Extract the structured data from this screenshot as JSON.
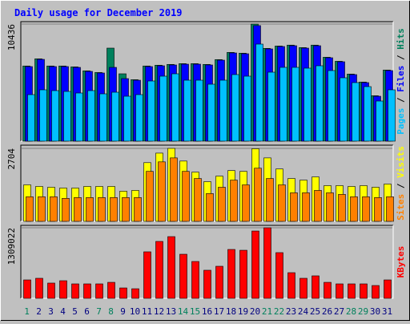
{
  "chart_data": {
    "type": "bar",
    "title": "Daily usage for December 2019",
    "categories": [
      "1",
      "2",
      "3",
      "4",
      "5",
      "6",
      "7",
      "8",
      "9",
      "10",
      "11",
      "12",
      "13",
      "14",
      "15",
      "16",
      "17",
      "18",
      "19",
      "20",
      "21",
      "22",
      "23",
      "24",
      "25",
      "26",
      "27",
      "28",
      "29",
      "30",
      "31"
    ],
    "category_colors": [
      "#00805c",
      "#000080",
      "#000080",
      "#000080",
      "#000080",
      "#000080",
      "#00805c",
      "#00805c",
      "#000080",
      "#000080",
      "#000080",
      "#000080",
      "#000080",
      "#00805c",
      "#00805c",
      "#000080",
      "#000080",
      "#000080",
      "#000080",
      "#000080",
      "#00805c",
      "#00805c",
      "#000080",
      "#000080",
      "#000080",
      "#000080",
      "#000080",
      "#00805c",
      "#00805c",
      "#000080",
      "#000080"
    ],
    "legend_separator": " / ",
    "panels": [
      {
        "ylim": [
          0,
          10436
        ],
        "yticks": [
          10436
        ],
        "series": [
          {
            "name": "Hits",
            "color": "#00805c",
            "values": [
              6700,
              7340,
              6700,
              6700,
              6620,
              6270,
              6120,
              8292,
              6004,
              5480,
              6700,
              6770,
              6840,
              6910,
              6910,
              6840,
              7270,
              7910,
              7840,
              10436,
              8270,
              8480,
              8560,
              8340,
              8560,
              7480,
              7120,
              5980,
              5270,
              4050,
              6340
            ]
          },
          {
            "name": "Files",
            "color": "#0000ff",
            "values": [
              6648,
              7291,
              6648,
              6648,
              6576,
              6219,
              6076,
              6576,
              5575,
              5432,
              6648,
              6719,
              6791,
              6862,
              6862,
              6791,
              7219,
              7863,
              7791,
              10300,
              8220,
              8435,
              8506,
              8292,
              8506,
              7434,
              7077,
              5933,
              5218,
              4003,
              6290
            ]
          },
          {
            "name": "Pages",
            "color": "#00c0ff",
            "values": [
              4146,
              4575,
              4503,
              4432,
              4289,
              4503,
              4217,
              4360,
              4003,
              4146,
              5361,
              5790,
              6004,
              5432,
              5432,
              5075,
              5432,
              5933,
              5790,
              8649,
              6147,
              6576,
              6576,
              6505,
              6719,
              6290,
              5647,
              5218,
              4861,
              3574,
              4575
            ]
          }
        ]
      },
      {
        "ylim": [
          0,
          2704
        ],
        "yticks": [
          2704
        ],
        "series": [
          {
            "name": "Visits",
            "color": "#ffff00",
            "values": [
              1352,
              1293,
              1264,
              1234,
              1234,
              1293,
              1293,
              1293,
              1117,
              1146,
              2175,
              2528,
              2704,
              2234,
              1822,
              1470,
              1675,
              1881,
              1852,
              2690,
              2351,
              1940,
              1587,
              1528,
              1646,
              1323,
              1323,
              1293,
              1323,
              1264,
              1381
            ]
          },
          {
            "name": "Sites",
            "color": "#ff8000",
            "values": [
              911,
              911,
              911,
              852,
              882,
              882,
              882,
              882,
              882,
              882,
              1852,
              2204,
              2351,
              1852,
              1587,
              1029,
              1264,
              1528,
              1352,
              1969,
              1587,
              1352,
              1058,
              1058,
              1146,
              1058,
              999,
              911,
              911,
              882,
              911
            ]
          }
        ]
      },
      {
        "ylim": [
          0,
          1309022
        ],
        "yticks": [
          1309022
        ],
        "series": [
          {
            "name": "KBytes",
            "color": "#ff0000",
            "values": [
              342000,
              372000,
              283000,
              327000,
              268000,
              268000,
              268000,
              297000,
              193000,
              178000,
              863000,
              1056000,
              1145000,
              818000,
              684000,
              521000,
              595000,
              907000,
              892000,
              1249000,
              1309022,
              848000,
              476000,
              372000,
              417000,
              297000,
              268000,
              268000,
              268000,
              238000,
              342000
            ]
          }
        ]
      }
    ]
  }
}
